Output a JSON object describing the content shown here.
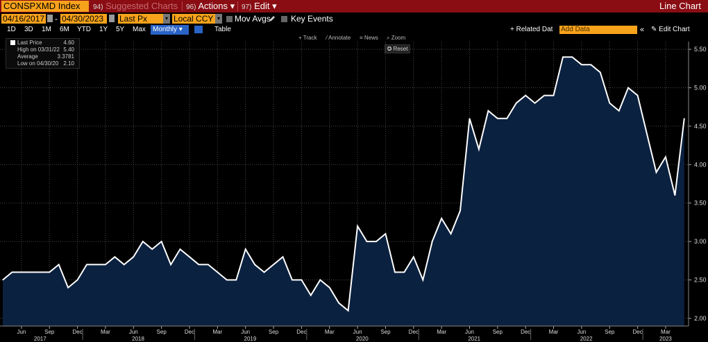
{
  "header": {
    "ticker": "CONSPXMD Index",
    "suggested_num": "94)",
    "suggested_label": "Suggested Charts",
    "actions_num": "96)",
    "actions_label": "Actions",
    "edit_num": "97)",
    "edit_label": "Edit",
    "dropdown_arrow": "▾",
    "chart_title": "Line Chart"
  },
  "controls": {
    "start_date": "04/16/2017",
    "end_date": "04/30/2023",
    "field": "Last Px",
    "currency": "Local CCY",
    "mov_avgs": "Mov Avgs",
    "key_events": "Key Events"
  },
  "periods": [
    "1D",
    "3D",
    "1M",
    "6M",
    "YTD",
    "1Y",
    "5Y",
    "Max"
  ],
  "frequency": "Monthly",
  "table_label": "Table",
  "related_data": "Related Dat",
  "add_data_placeholder": "Add Data",
  "edit_chart": "Edit Chart",
  "chart_tools": {
    "track": "Track",
    "annotate": "Annotate",
    "news": "News",
    "zoom": "Zoom",
    "reset": "Reset"
  },
  "legend": {
    "last_label": "Last Price",
    "last_value": "4.60",
    "high_label": "High on 03/31/22",
    "high_value": "5.40",
    "avg_label": "Average",
    "avg_value": "3.3781",
    "low_label": "Low on 04/30/20",
    "low_value": "2.10"
  },
  "colors": {
    "line": "#ffffff",
    "area": "#0b2140",
    "accent": "#f7a21b",
    "header": "#8a0d14",
    "grid": "#555555"
  },
  "chart_data": {
    "type": "area",
    "ylim": [
      1.9,
      5.6
    ],
    "yticks": [
      "5.50",
      "5.00",
      "4.50",
      "4.00",
      "3.50",
      "3.00",
      "2.50",
      "2.00"
    ],
    "ytick_values": [
      5.5,
      5.0,
      4.5,
      4.0,
      3.5,
      3.0,
      2.5,
      2.0
    ],
    "month_labels": [
      "Jun",
      "Sep",
      "Dec",
      "Mar",
      "Jun",
      "Sep",
      "Dec",
      "Mar",
      "Jun",
      "Sep",
      "Dec",
      "Mar",
      "Jun",
      "Sep",
      "Dec",
      "Mar",
      "Jun",
      "Sep",
      "Dec",
      "Mar",
      "Jun",
      "Sep",
      "Dec",
      "Mar"
    ],
    "year_labels": [
      "2017",
      "2018",
      "2019",
      "2020",
      "2021",
      "2022",
      "2023"
    ],
    "x_start": "2017-04",
    "values": [
      2.5,
      2.6,
      2.6,
      2.6,
      2.6,
      2.6,
      2.7,
      2.4,
      2.5,
      2.7,
      2.7,
      2.7,
      2.8,
      2.7,
      2.8,
      3.0,
      2.9,
      3.0,
      2.7,
      2.9,
      2.8,
      2.7,
      2.7,
      2.6,
      2.5,
      2.5,
      2.9,
      2.7,
      2.6,
      2.7,
      2.8,
      2.5,
      2.5,
      2.3,
      2.5,
      2.4,
      2.2,
      2.1,
      3.2,
      3.0,
      3.0,
      3.1,
      2.6,
      2.6,
      2.8,
      2.5,
      3.0,
      3.3,
      3.1,
      3.4,
      4.6,
      4.2,
      4.7,
      4.6,
      4.6,
      4.8,
      4.9,
      4.8,
      4.9,
      4.9,
      5.4,
      5.4,
      5.3,
      5.3,
      5.2,
      4.8,
      4.7,
      5.0,
      4.9,
      4.4,
      3.9,
      4.1,
      3.6,
      4.6
    ]
  }
}
